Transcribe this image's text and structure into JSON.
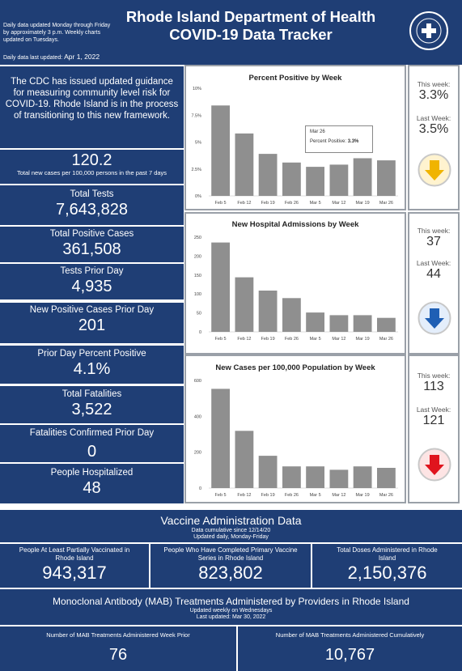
{
  "header": {
    "update_note": "Daily data updated Monday through Friday by approximately 3 p.m. Weekly charts updated on Tuesdays.",
    "last_updated_label": "Daily data last updated:",
    "last_updated_date": "Apr 1, 2022",
    "title_line1": "Rhode Island Department of Health",
    "title_line2": "COVID-19 Data Tracker",
    "seal_text": "RHODE ISLAND DEPARTMENT OF HEALTH"
  },
  "notice": "The CDC has issued updated guidance for measuring community level risk for COVID-19. Rhode Island is in the process of transitioning to this new framework.",
  "stats": {
    "per100k_value": "120.2",
    "per100k_label": "Total new cases per 100,000 persons in the past 7 days",
    "total_tests_label": "Total Tests",
    "total_tests_value": "7,643,828",
    "total_positive_label": "Total Positive Cases",
    "total_positive_value": "361,508",
    "tests_prior_label": "Tests Prior Day",
    "tests_prior_value": "4,935",
    "new_positive_label": "New Positive Cases Prior Day",
    "new_positive_value": "201",
    "pct_positive_label": "Prior Day Percent Positive",
    "pct_positive_value": "4.1%",
    "fatalities_label": "Total Fatalities",
    "fatalities_value": "3,522",
    "fatalities_prior_label": "Fatalities Confirmed Prior Day",
    "fatalities_prior_value": "0",
    "hospitalized_label": "People Hospitalized",
    "hospitalized_value": "48"
  },
  "side": {
    "pct": {
      "this_label": "This week:",
      "this_value": "3.3%",
      "last_label": "Last Week:",
      "last_value": "3.5%",
      "arrow_color": "#f0b400",
      "arrow_fill": "#fff3cf"
    },
    "hosp": {
      "this_label": "This week:",
      "this_value": "37",
      "last_label": "Last Week:",
      "last_value": "44",
      "arrow_color": "#1f5fb4",
      "arrow_fill": "#e4eefb"
    },
    "cases": {
      "this_label": "This week:",
      "this_value": "113",
      "last_label": "Last Week:",
      "last_value": "121",
      "arrow_color": "#e0141e",
      "arrow_fill": "#fde4e4"
    }
  },
  "tooltip": {
    "date": "Mar 26",
    "label": "Percent Positive:",
    "value": "3.3%"
  },
  "chart_data": [
    {
      "type": "bar",
      "title": "Percent Positive by Week",
      "categories": [
        "Feb 5",
        "Feb 12",
        "Feb 19",
        "Feb 26",
        "Mar 5",
        "Mar 12",
        "Mar 19",
        "Mar 26"
      ],
      "values": [
        8.4,
        5.8,
        3.9,
        3.1,
        2.7,
        2.9,
        3.5,
        3.3
      ],
      "yticks": [
        "0%",
        "2.5%",
        "5%",
        "7.5%",
        "10%"
      ],
      "ylim": [
        0,
        10
      ],
      "xlabel": "",
      "ylabel": ""
    },
    {
      "type": "bar",
      "title": "New Hospital Admissions by Week",
      "categories": [
        "Feb 5",
        "Feb 12",
        "Feb 19",
        "Feb 26",
        "Mar 5",
        "Mar 12",
        "Mar 19",
        "Mar 26"
      ],
      "values": [
        236,
        144,
        109,
        89,
        51,
        44,
        44,
        37
      ],
      "yticks": [
        "0",
        "50",
        "100",
        "150",
        "200",
        "250"
      ],
      "ylim": [
        0,
        250
      ],
      "xlabel": "",
      "ylabel": ""
    },
    {
      "type": "bar",
      "title": "New Cases per 100,000 Population by Week",
      "categories": [
        "Feb 5",
        "Feb 12",
        "Feb 19",
        "Feb 26",
        "Mar 5",
        "Mar 12",
        "Mar 19",
        "Mar 26"
      ],
      "values": [
        553,
        319,
        180,
        121,
        121,
        102,
        121,
        113
      ],
      "yticks": [
        "0",
        "200",
        "400",
        "600"
      ],
      "ylim": [
        0,
        600
      ],
      "xlabel": "",
      "ylabel": ""
    }
  ],
  "vaccine": {
    "title": "Vaccine Administration Data",
    "sub1": "Data cumulative since 12/14/20",
    "sub2": "Updated daily, Monday-Friday",
    "c1_label": "People At Least Partially Vaccinated in Rhode Island",
    "c1_value": "943,317",
    "c2_label": "People Who Have Completed Primary Vaccine Series in Rhode Island",
    "c2_value": "823,802",
    "c3_label": "Total Doses Administered in Rhode Island",
    "c3_value": "2,150,376"
  },
  "mab": {
    "title": "Monoclonal Antibody (MAB) Treatments Administered by Providers in Rhode Island",
    "sub1": "Updated weekly on Wednesdays",
    "sub2": "Last updated: Mar 30, 2022",
    "c1_label": "Number of MAB Treatments Administered Week Prior",
    "c1_value": "76",
    "c2_label": "Number of MAB Treatments Administered Cumulatively",
    "c2_value": "10,767"
  }
}
